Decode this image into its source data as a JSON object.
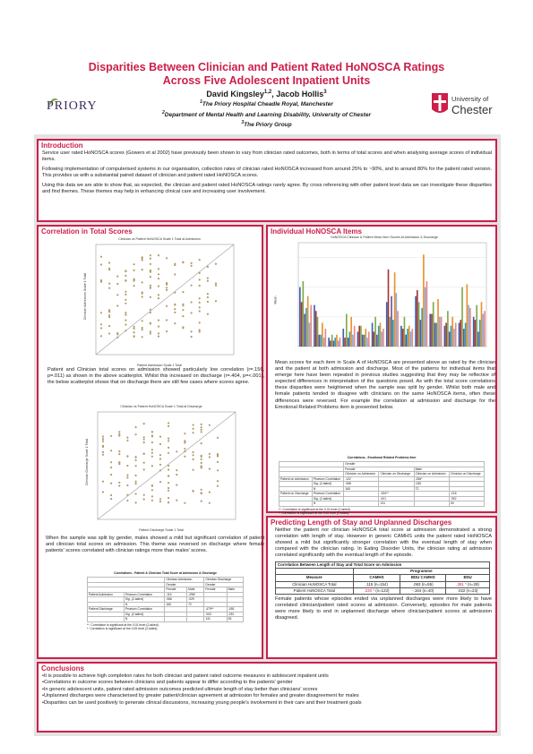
{
  "header": {
    "title_line1": "Disparities Between Clinician and Patient Rated HoNOSCA Ratings",
    "title_line2": "Across Five Adolescent Inpatient Units",
    "author1": "David Kingsley",
    "author1_sup": "1,2",
    "author2": "Jacob Hollis",
    "author2_sup": "3",
    "affil1_sup": "1",
    "affil1": "The Priory Hospital Cheadle Royal, Manchester",
    "affil2_sup": "2",
    "affil2": "Department of Mental Health and Learning Disability, University of Chester",
    "affil3_sup": "3",
    "affil3": "The Priory Group",
    "logo_left": "PRIORY",
    "logo_right_line1": "University of",
    "logo_right_line2": "Chester"
  },
  "intro": {
    "heading": "Introduction",
    "p1": "Service user rated HoNOSCA scores (Gowers et al 2002) have previously been shown to vary from clinician rated outcomes, both in terms of total scores and when analysing average scores of individual items.",
    "p2": "Following implementation of computerised systems in our organisation, collection rates of clinician rated HoNOSCA increased from around 25% to ~90%, and to around 80% for the patient rated version. This provides us with a substantial paired dataset of clinician and patient rated HoNOSCA scores.",
    "p3": "Using this data we are able to show that, as expected, the clinician and patient rated HoNOSCA ratings rarely agree. By cross referencing with other patient level data we can investigate these disparities and find themes. These themes may help in enhancing clinical care and increasing user involvement."
  },
  "correlation": {
    "heading": "Correlation in Total Scores",
    "chart1_title": "Clinician vs Patient HoNOSCA Scale 1 Total at Admission",
    "chart1_xlabel": "Patient Admission Scale 1 Total",
    "chart1_ylabel": "Clinician Admission Scale 1 Total",
    "p1": "Patient and Clinician total scores on admission showed particularly low correlation (r=.156, p=.011) as shown in the above scatterplot. Whilst this increased on discharge (r=.404, p=<.001), the below scatterplot shows that on discharge there are still few cases where scores agree.",
    "chart2_title": "Clinician vs Patient HoNOSCA Scale 1 Total at Discharge",
    "chart2_xlabel": "Patient Discharge Scale 1 Total",
    "chart2_ylabel": "Clinician Discharge Scale 1 Total",
    "p2": "When the sample was split by gender, males showed a mild but significant correlation of patient and clinician total scores on admission. This theme was reversed on discharge where female patients' scores correlated with clinician ratings more than males' scores.",
    "table_title": "Correlations - Patient & Clinician Total Score at Admission & Discharge",
    "table_head1": [
      "",
      "",
      "Clinician Admission",
      "Clinician Discharge"
    ],
    "table_head2": [
      "",
      "",
      "Gender",
      "Gender"
    ],
    "table_head3": [
      "",
      "",
      "Female",
      "Male",
      "Female",
      "Male"
    ],
    "table_rows": [
      [
        "Patient Admission",
        "Pearson Correlation",
        ".115",
        ".298*",
        "",
        ""
      ],
      [
        "",
        "Sig. (2-tailed)",
        ".086",
        ".029",
        "",
        ""
      ],
      [
        "",
        "N",
        "166",
        "72",
        "",
        ""
      ],
      [
        "Patient Discharge",
        "Pearson Correlation",
        "",
        "",
        ".479**",
        ".198"
      ],
      [
        "",
        "Sig. (2-tailed)",
        "",
        "",
        ".000",
        ".230"
      ],
      [
        "",
        "N",
        "",
        "",
        "131",
        "53"
      ]
    ],
    "table_note1": "**. Correlation is significant at the 0.01 level (2-tailed).",
    "table_note2": "*. Correlation is significant at the 0.05 level (2-tailed)."
  },
  "items": {
    "heading": "Individual HoNOSCA Items",
    "chart_title": "HoNOSCA Clinician & Patient Mean Item Scores At Admission & Discharge",
    "chart_ylabel": "Mean",
    "text": "Mean scores for each item in Scale A of HoNOSCA are presented above as rated by the clinician and the patient at both admission and discharge. Most of the patterns for individual items that emerge here have been repeated in previous studies suggesting that they may be reflective of expected differences in interpretation of the questions posed. As with the total score correlations these disparities were heightened when the sample was split by gender. Whilst both male and female patients tended to disagree with clinicians on the same HoNOSCA items, often these differences were reversed. For example the correlation at admission and discharge for the Emotional Related Problems item is presented below.",
    "table_title": "Correlations - Emotional Related Problems Item",
    "table_head1": [
      "",
      "",
      "Gender"
    ],
    "table_head2": [
      "",
      "",
      "Female",
      "Male"
    ],
    "table_head3": [
      "",
      "",
      "Clinician on Admission",
      "Clinician on Discharge",
      "Clinician on Admission",
      "Clinician on Discharge"
    ],
    "table_rows": [
      [
        "Patient on Admission",
        "Pearson Correlation",
        ".122",
        "",
        ".256*",
        ""
      ],
      [
        "",
        "Sig. (2-tailed)",
        ".068",
        "",
        ".030",
        ""
      ],
      [
        "",
        "N",
        "165",
        "",
        "72",
        ""
      ],
      [
        "Patient on Discharge",
        "Pearson Correlation",
        "",
        ".334**",
        "",
        ".218"
      ],
      [
        "",
        "Sig. (2-tailed)",
        "",
        ".001",
        "",
        ".392"
      ],
      [
        "",
        "N",
        "",
        "131",
        "",
        "53"
      ]
    ],
    "table_note1": "**. Correlation is significant at the 0.01 level (2-tailed).",
    "table_note2": "*. Correlation is significant at the 0.05 level (2-tailed)."
  },
  "los": {
    "heading": "Predicting Length of Stay and Unplanned Discharges",
    "p1": "Neither the patient nor clinician HoNOSCA total score at admission demonstrated a strong correlation with length of stay. However in generic CAMHS units the patient rated HoNOSCA showed a mild but significantly stronger correlation with the eventual length of stay when compared with the clinician rating. In Eating Disorder Units, the clinician rating at admission correlated significantly with the eventual length of the episode.",
    "table_title": "Correlation Between Length of Stay and Total Score on Admission",
    "table_programme": "Programme",
    "table_cols": [
      "Measure",
      "CAMHS",
      "BDU CAMHS",
      "EDU"
    ],
    "row1_label": "Clinician HoNOSCA Total",
    "row1_camhs": ".115 (n=154)",
    "row1_bdu": ".063 (n=55)",
    "row1_edu_r": ".381 *",
    "row1_edu_n": " (n=28)",
    "row2_label": "Patient HoNOSCA Total",
    "row2_camhs_r": ".230 *",
    "row2_camhs_n": " (n=123)",
    "row2_bdu": "-.164 (n=40)",
    "row2_edu": ".022 (n=23)",
    "p2": "Female patients whose episodes ended via unplanned discharges were more likely to have correlated clinician/patient rated scores at admission. Conversely, episodes for male patients were more likely to end in unplanned discharge where clinician/patient scores at admission disagreed."
  },
  "conclusions": {
    "heading": "Conclusions",
    "bullets": [
      "•It is possible to achieve high completion rates for both clinician and patient rated outcome measures in adolescent inpatient units",
      "•Correlations in outcome scores between clinicians and patients appear to differ according to the patients' gender",
      "•In generic adolescent units, patient rated admission outcomes predicted ultimate length of stay better than clinicians' scores",
      "•Unplanned discharges were characterised by greater patient/clinician agreement at admission for females and greater disagreement for males",
      "•Disparities can be used positively to generate clinical discussions, increasing young people's involvement in their care and their treatment goals"
    ]
  },
  "colors": {
    "accent": "#cc1f4a",
    "panel_bg": "#e3e3e3"
  },
  "chart_data": [
    {
      "type": "bar",
      "title": "HoNOSCA Clinician & Patient Mean Item Scores At Admission & Discharge",
      "ylabel": "Mean",
      "ylim": [
        0,
        3.5
      ],
      "categories": [
        "1",
        "2",
        "3",
        "4",
        "5",
        "6",
        "7",
        "8",
        "9",
        "10",
        "11",
        "12",
        "13"
      ],
      "series": [
        {
          "color": "#3e5ea8",
          "values": [
            2.0,
            1.4,
            0.3,
            0.6,
            0.5,
            0.8,
            1.5,
            0.7,
            1.7,
            1.1,
            0.7,
            0.8,
            1.0
          ]
        },
        {
          "color": "#a83232",
          "values": [
            1.5,
            1.2,
            0.2,
            0.3,
            0.7,
            0.5,
            2.6,
            0.6,
            1.9,
            1.1,
            0.8,
            0.9,
            0.9
          ]
        },
        {
          "color": "#7fa84a",
          "values": [
            2.2,
            1.0,
            0.4,
            1.1,
            0.7,
            1.0,
            1.0,
            1.0,
            1.5,
            1.5,
            1.2,
            2.0,
            1.4
          ]
        },
        {
          "color": "#6b4f9b",
          "values": [
            1.1,
            0.4,
            0.2,
            0.3,
            0.4,
            0.4,
            1.7,
            0.4,
            0.9,
            0.8,
            0.5,
            0.6,
            0.5
          ]
        },
        {
          "color": "#2fa0b5",
          "values": [
            1.3,
            0.4,
            0.3,
            0.5,
            0.4,
            0.7,
            0.9,
            0.6,
            1.3,
            0.8,
            0.7,
            0.8,
            0.9
          ]
        },
        {
          "color": "#e8912e",
          "values": [
            1.7,
            0.8,
            0.4,
            1.0,
            0.6,
            0.8,
            2.5,
            0.7,
            3.1,
            1.6,
            1.0,
            2.1,
            1.5
          ]
        },
        {
          "color": "#8eaad6",
          "values": [
            0.8,
            0.3,
            0.2,
            0.4,
            0.3,
            0.5,
            1.8,
            0.5,
            2.0,
            1.0,
            0.6,
            1.4,
            1.1
          ]
        },
        {
          "color": "#e58a8a",
          "values": [
            1.4,
            0.6,
            0.3,
            0.7,
            0.5,
            0.6,
            1.2,
            0.6,
            2.2,
            1.0,
            0.8,
            1.3,
            1.2
          ]
        }
      ]
    }
  ]
}
